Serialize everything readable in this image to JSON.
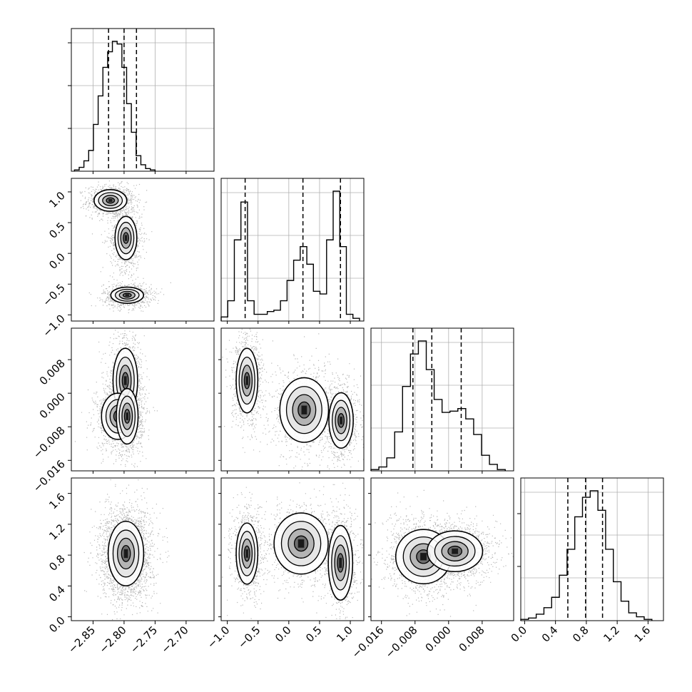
{
  "chart_data": {
    "type": "corner",
    "grid": true,
    "parameters": 4,
    "x_tick_labels": [
      [
        "−2.85",
        "−2.80",
        "−2.75",
        "−2.70"
      ],
      [
        "−1.0",
        "−0.5",
        "0.0",
        "0.5",
        "1.0"
      ],
      [
        "−0.016",
        "−0.008",
        "0.000",
        "0.008"
      ],
      [
        "0.0",
        "0.4",
        "0.8",
        "1.2",
        "1.6"
      ]
    ],
    "y_tick_labels": {
      "row1": [
        "1.0",
        "0.5",
        "0.0",
        "−0.5",
        "−1.0"
      ],
      "row2": [
        "0.008",
        "0.000",
        "−0.008",
        "−0.016"
      ],
      "row3": [
        "1.6",
        "1.2",
        "0.8",
        "0.4",
        "0.0"
      ]
    },
    "histograms": [
      {
        "parameter": 0,
        "bin_range": [
          -2.88,
          -2.75
        ],
        "counts": [
          1,
          3,
          8,
          16,
          36,
          58,
          80,
          92,
          100,
          98,
          80,
          52,
          30,
          12,
          5,
          2,
          1
        ],
        "quantiles": [
          -2.825,
          -2.8,
          -2.78
        ]
      },
      {
        "parameter": 1,
        "bin_range": [
          -1.1,
          1.15
        ],
        "counts": [
          3,
          15,
          60,
          88,
          15,
          5,
          5,
          7,
          8,
          15,
          30,
          45,
          55,
          42,
          22,
          20,
          60,
          96,
          55,
          5,
          2
        ],
        "quantiles": [
          -0.71,
          0.23,
          0.84
        ]
      },
      {
        "parameter": 2,
        "bin_range": [
          -0.0185,
          0.0135
        ],
        "counts": [
          1,
          3,
          10,
          30,
          65,
          90,
          100,
          78,
          55,
          45,
          46,
          48,
          40,
          28,
          12,
          5,
          1
        ],
        "quantiles": [
          -0.0085,
          -0.004,
          0.003
        ]
      },
      {
        "parameter": 3,
        "bin_range": [
          -0.05,
          1.65
        ],
        "counts": [
          1,
          2,
          5,
          10,
          18,
          35,
          55,
          80,
          95,
          100,
          85,
          55,
          30,
          15,
          6,
          3,
          1
        ],
        "quantiles": [
          0.56,
          0.79,
          1.01
        ]
      }
    ],
    "scatter_panels": [
      {
        "x_param": 0,
        "y_param": 1,
        "modes": [
          [
            -2.822,
            0.86,
            0.012,
            0.08
          ],
          [
            -2.797,
            0.25,
            0.008,
            0.16
          ],
          [
            -2.795,
            -0.68,
            0.012,
            0.06
          ]
        ]
      },
      {
        "x_param": 0,
        "y_param": 2,
        "modes": [
          [
            -2.798,
            0.003,
            0.009,
            0.0035
          ],
          [
            -2.81,
            -0.0055,
            0.012,
            0.0025
          ],
          [
            -2.795,
            -0.0055,
            0.008,
            0.003
          ]
        ]
      },
      {
        "x_param": 0,
        "y_param": 3,
        "modes": [
          [
            -2.797,
            0.82,
            0.013,
            0.19
          ]
        ]
      },
      {
        "x_param": 1,
        "y_param": 2,
        "modes": [
          [
            -0.68,
            0.003,
            0.08,
            0.0035
          ],
          [
            0.25,
            -0.004,
            0.18,
            0.0035
          ],
          [
            0.85,
            -0.0065,
            0.09,
            0.003
          ]
        ]
      },
      {
        "x_param": 1,
        "y_param": 3,
        "modes": [
          [
            -0.68,
            0.82,
            0.08,
            0.18
          ],
          [
            0.2,
            0.95,
            0.2,
            0.18
          ],
          [
            0.84,
            0.7,
            0.09,
            0.22
          ]
        ]
      },
      {
        "x_param": 2,
        "y_param": 3,
        "modes": [
          [
            -0.006,
            0.78,
            0.003,
            0.16
          ],
          [
            0.0015,
            0.85,
            0.003,
            0.12
          ]
        ]
      }
    ]
  }
}
